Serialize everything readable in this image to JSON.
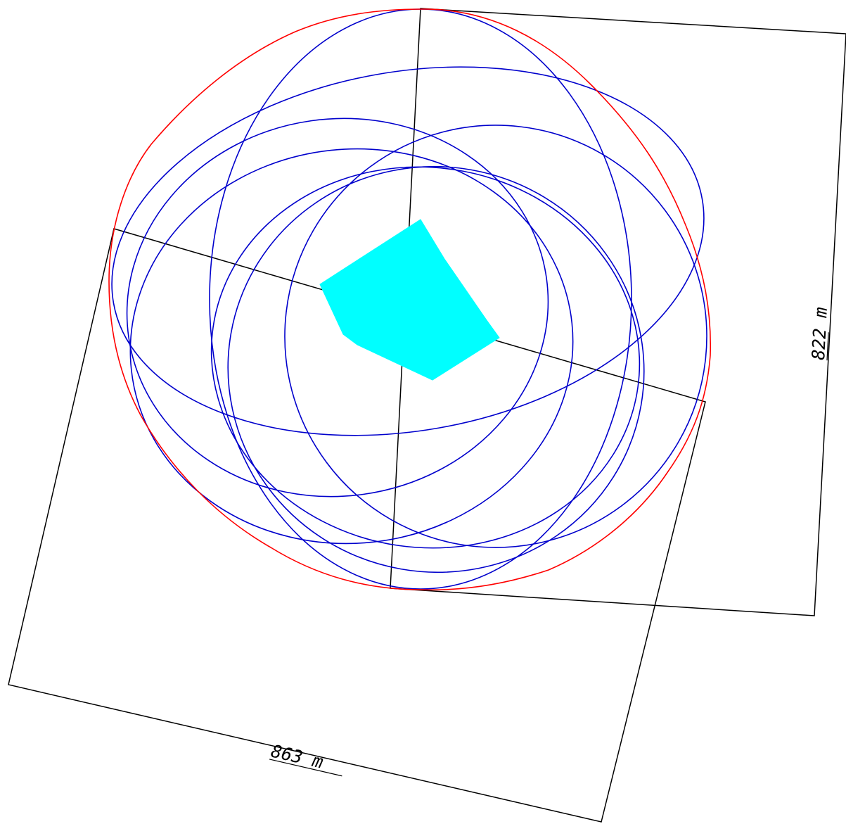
{
  "dimensions": {
    "width_label": "863 m",
    "height_label": "822 m"
  },
  "colors": {
    "background": "#ffffff",
    "frame": "#000000",
    "envelope": "#ff0000",
    "ellipses": "#0000cc",
    "site_polygon": "#00ffff",
    "label": "#000000"
  }
}
